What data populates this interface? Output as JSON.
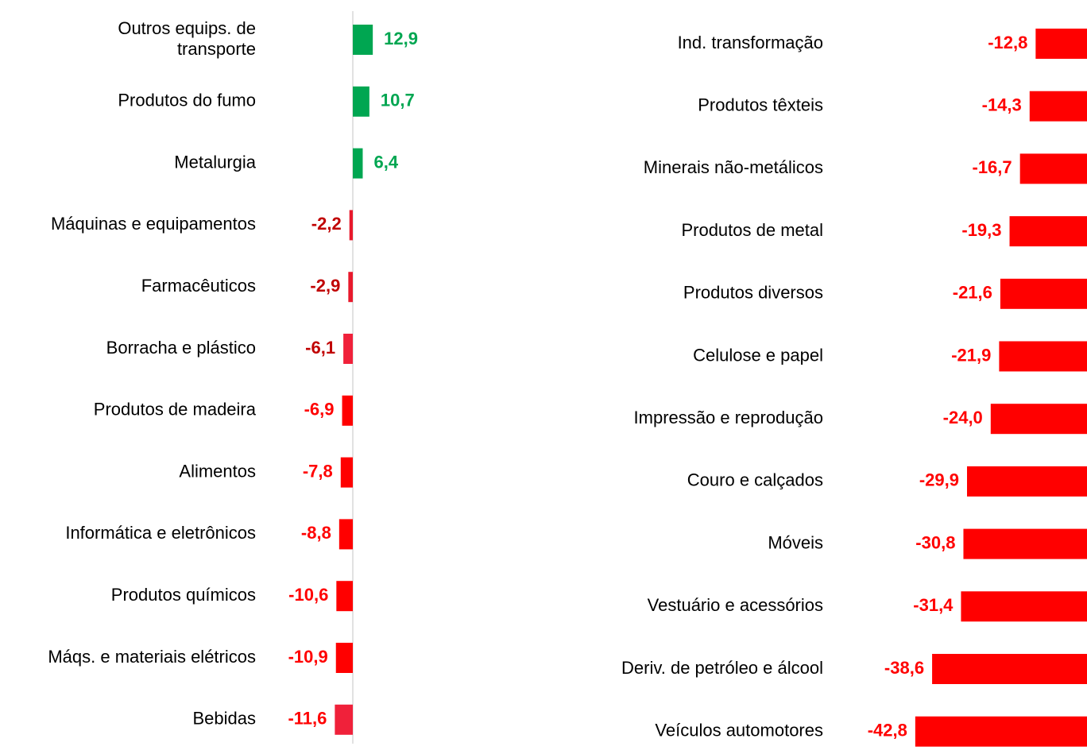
{
  "chart_data": [
    {
      "type": "bar",
      "orientation": "horizontal",
      "categories": [
        "Outros equips. de\ntransporte",
        "Produtos do fumo",
        "Metalurgia",
        "Máquinas e equipamentos",
        "Farmacêuticos",
        "Borracha e plástico",
        "Produtos de madeira",
        "Alimentos",
        "Informática e eletrônicos",
        "Produtos químicos",
        "Máqs. e materiais elétricos",
        "Bebidas"
      ],
      "values": [
        12.9,
        10.7,
        6.4,
        -2.2,
        -2.9,
        -6.1,
        -6.9,
        -7.8,
        -8.8,
        -10.6,
        -10.9,
        -11.6
      ],
      "value_labels": [
        "12,9",
        "10,7",
        "6,4",
        "-2,2",
        "-2,9",
        "-6,1",
        "-6,9",
        "-7,8",
        "-8,8",
        "-10,6",
        "-10,9",
        "-11,6"
      ],
      "colors": [
        "#00a651",
        "#00a651",
        "#00a651",
        "#e8192c",
        "#e8192c",
        "#f0213a",
        "#ff0000",
        "#ff0000",
        "#ff0000",
        "#ff0000",
        "#ff0000",
        "#f0213a"
      ],
      "label_colors": [
        "#00a651",
        "#00a651",
        "#00a651",
        "#c00000",
        "#c00000",
        "#c00000",
        "#ff0000",
        "#ff0000",
        "#ff0000",
        "#ff0000",
        "#ff0000",
        "#ff0000"
      ]
    },
    {
      "type": "bar",
      "orientation": "horizontal",
      "categories": [
        "Ind. transformação",
        "Produtos têxteis",
        "Minerais não-metálicos",
        "Produtos de metal",
        "Produtos diversos",
        "Celulose e papel",
        "Impressão e reprodução",
        "Couro e calçados",
        "Móveis",
        "Vestuário e acessórios",
        "Deriv. de petróleo e álcool",
        "Veículos automotores"
      ],
      "values": [
        -12.8,
        -14.3,
        -16.7,
        -19.3,
        -21.6,
        -21.9,
        -24.0,
        -29.9,
        -30.8,
        -31.4,
        -38.6,
        -42.8
      ],
      "value_labels": [
        "-12,8",
        "-14,3",
        "-16,7",
        "-19,3",
        "-21,6",
        "-21,9",
        "-24,0",
        "-29,9",
        "-30,8",
        "-31,4",
        "-38,6",
        "-42,8"
      ],
      "colors": [
        "#ff0000",
        "#ff0000",
        "#ff0000",
        "#ff0000",
        "#ff0000",
        "#ff0000",
        "#ff0000",
        "#ff0000",
        "#ff0000",
        "#ff0000",
        "#ff0000",
        "#ff0000"
      ],
      "label_colors": [
        "#ff0000",
        "#ff0000",
        "#ff0000",
        "#ff0000",
        "#ff0000",
        "#ff0000",
        "#ff0000",
        "#ff0000",
        "#ff0000",
        "#ff0000",
        "#ff0000",
        "#ff0000"
      ]
    }
  ]
}
